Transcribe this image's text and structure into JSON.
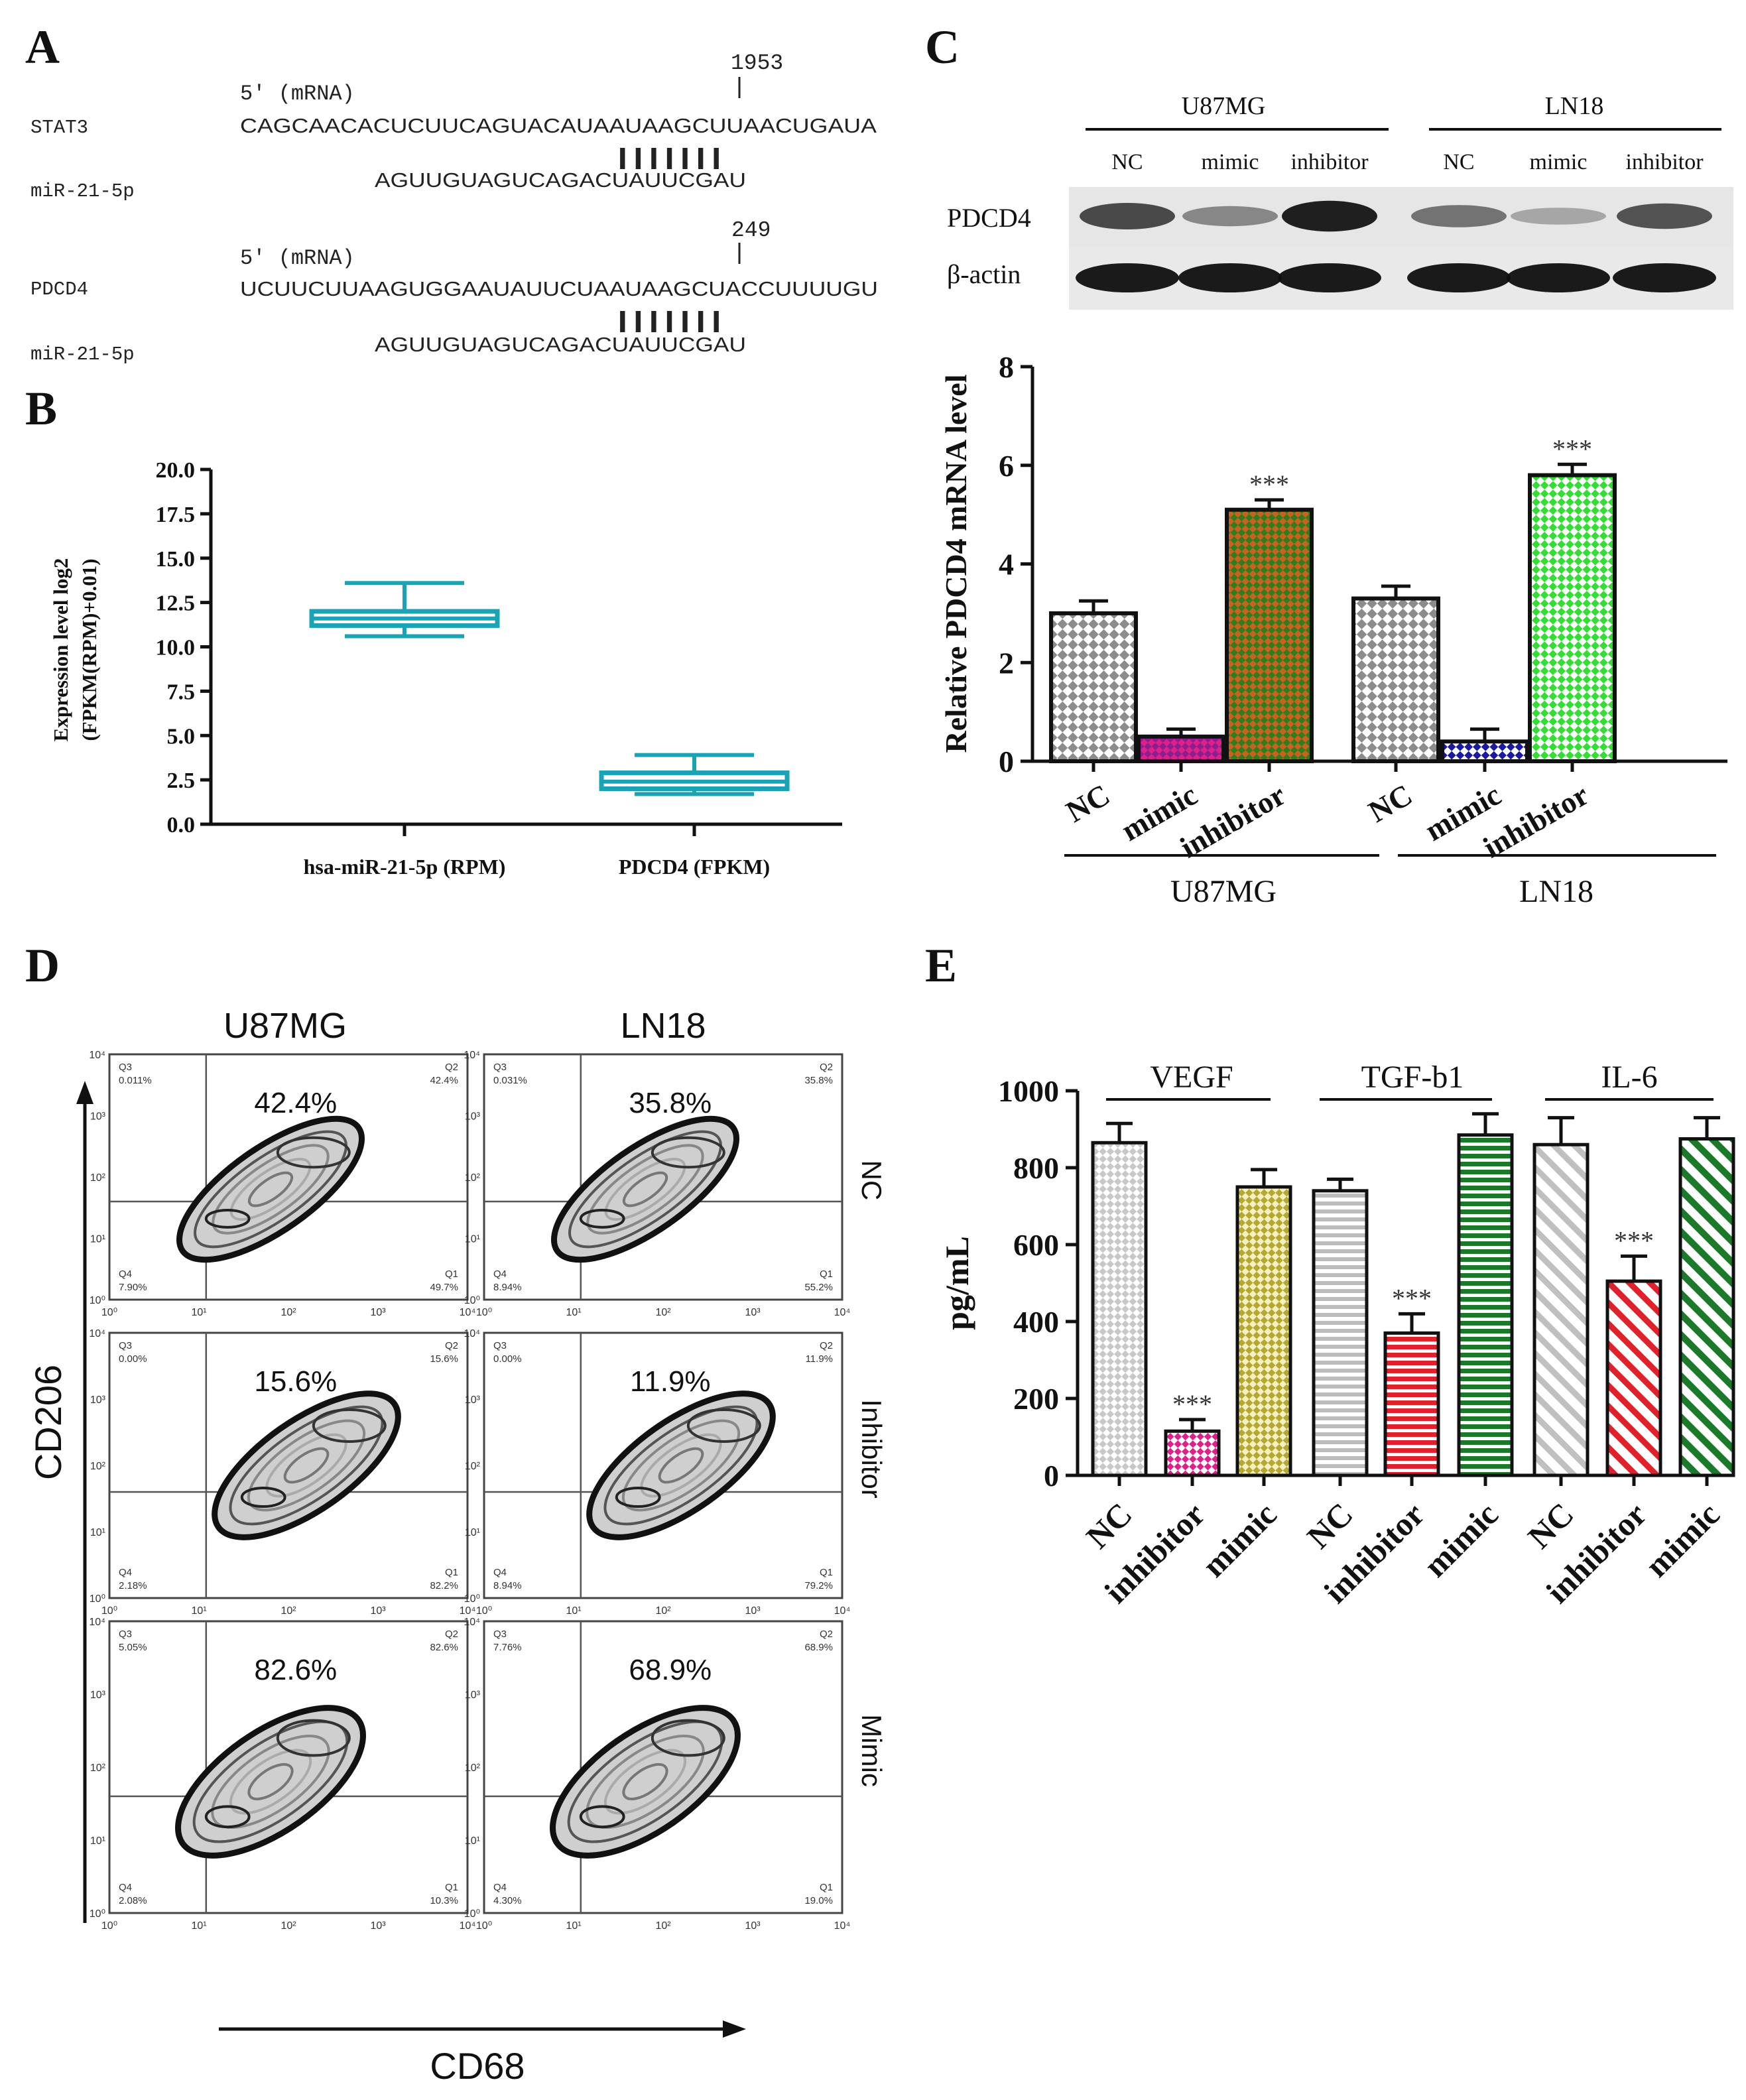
{
  "panels": {
    "A": "A",
    "B": "B",
    "C": "C",
    "D": "D",
    "E": "E"
  },
  "panelA": {
    "rows": [
      {
        "pos": "1953",
        "prime": "5' (mRNA)",
        "gene": "STAT3",
        "target": "CAGCAACACUCUUCAGUACAUAAUAAGCUUAACUGAUA",
        "bars": "|||||||",
        "mirna_label": "miR-21-5p",
        "mirna": "AGUUGUAGUCAGACUAUUCGAU"
      },
      {
        "pos": "249",
        "prime": "5' (mRNA)",
        "gene": "PDCD4",
        "target": "UCUUCUUAAGUGGAAUAUUCUAAUAAGCUACCUUUUGU",
        "bars": "|||||||",
        "mirna_label": "miR-21-5p",
        "mirna": "AGUUGUAGUCAGACUAUUCGAU"
      }
    ]
  },
  "blot": {
    "group1": "U87MG",
    "group2": "LN18",
    "lanes": [
      "NC",
      "mimic",
      "inhibitor",
      "NC",
      "mimic",
      "inhibitor"
    ],
    "rows": [
      "PDCD4",
      "β-actin"
    ],
    "pdcd4_intensity": [
      0.75,
      0.45,
      0.95,
      0.55,
      0.3,
      0.7
    ],
    "actin_intensity": [
      0.95,
      0.95,
      0.95,
      0.95,
      0.95,
      0.95
    ]
  },
  "facs": {
    "col_titles": [
      "U87MG",
      "LN18"
    ],
    "row_labels": [
      "NC",
      "Inhibitor",
      "Mimic"
    ],
    "tick_labels": [
      "10⁰",
      "10¹",
      "10²",
      "10³",
      "10⁴"
    ],
    "cells": [
      {
        "big": "42.4%",
        "q3": "Q3",
        "q3v": "0.011%",
        "q2": "Q2",
        "q2v": "42.4%",
        "q4": "Q4",
        "q4v": "7.90%",
        "q1": "Q1",
        "q1v": "49.7%"
      },
      {
        "big": "35.8%",
        "q3": "Q3",
        "q3v": "0.031%",
        "q2": "Q2",
        "q2v": "35.8%",
        "q4": "Q4",
        "q4v": "8.94%",
        "q1": "Q1",
        "q1v": "55.2%"
      },
      {
        "big": "15.6%",
        "q3": "Q3",
        "q3v": "0.00%",
        "q2": "Q2",
        "q2v": "15.6%",
        "q4": "Q4",
        "q4v": "2.18%",
        "q1": "Q1",
        "q1v": "82.2%"
      },
      {
        "big": "11.9%",
        "q3": "Q3",
        "q3v": "0.00%",
        "q2": "Q2",
        "q2v": "11.9%",
        "q4": "Q4",
        "q4v": "8.94%",
        "q1": "Q1",
        "q1v": "79.2%"
      },
      {
        "big": "82.6%",
        "q3": "Q3",
        "q3v": "5.05%",
        "q2": "Q2",
        "q2v": "82.6%",
        "q4": "Q4",
        "q4v": "2.08%",
        "q1": "Q1",
        "q1v": "10.3%"
      },
      {
        "big": "68.9%",
        "q3": "Q3",
        "q3v": "7.76%",
        "q2": "Q2",
        "q2v": "68.9%",
        "q4": "Q4",
        "q4v": "4.30%",
        "q1": "Q1",
        "q1v": "19.0%"
      }
    ],
    "ylabel": "CD206",
    "xlabel": "CD68"
  },
  "colors": {
    "teal": "#1aa3b5",
    "gray": "#8c8c8c",
    "purple": "#8b1f8e",
    "orange_hatch": "#c9621e",
    "green_hatch": "#2f7d1f",
    "lime": "#33dd33",
    "blue": "#1a1aa0",
    "red": "#e0202a",
    "pink": "#e0208a",
    "olive": "#b5a832",
    "dkgreen": "#1a7a2a",
    "lightgray": "#cfcfcf"
  },
  "chart_data": [
    {
      "id": "B",
      "type": "boxplot",
      "ylabel": "Expression level log2 (FPKM(RPM)+0.01)",
      "ylabel_line1": "Expression level log2",
      "ylabel_line2": "(FPKM(RPM)+0.01)",
      "ylim": [
        0,
        20
      ],
      "yticks": [
        "0.0",
        "2.5",
        "5.0",
        "7.5",
        "10.0",
        "12.5",
        "15.0",
        "17.5",
        "20.0"
      ],
      "categories": [
        "hsa-miR-21-5p (RPM)",
        "PDCD4 (FPKM)"
      ],
      "boxes": [
        {
          "min": 10.6,
          "q1": 11.2,
          "median": 11.6,
          "q3": 12.0,
          "max": 13.6
        },
        {
          "min": 1.7,
          "q1": 2.0,
          "median": 2.4,
          "q3": 2.9,
          "max": 3.9
        }
      ]
    },
    {
      "id": "C",
      "type": "bar",
      "ylabel": "Relative PDCD4 mRNA level",
      "ylim": [
        0,
        8
      ],
      "yticks": [
        "0",
        "2",
        "4",
        "6",
        "8"
      ],
      "categories": [
        "NC",
        "mimic",
        "inhibitor",
        "NC",
        "mimic",
        "inhibitor"
      ],
      "groups": [
        "U87MG",
        "LN18"
      ],
      "values": [
        3.0,
        0.5,
        5.1,
        3.3,
        0.4,
        5.8
      ],
      "errors": [
        0.25,
        0.15,
        0.2,
        0.25,
        0.25,
        0.22
      ],
      "stars": [
        "",
        "",
        "***",
        "",
        "",
        "***"
      ]
    },
    {
      "id": "E",
      "type": "bar",
      "ylabel": "pg/mL",
      "ylim": [
        0,
        1000
      ],
      "yticks": [
        "0",
        "200",
        "400",
        "600",
        "800",
        "1000"
      ],
      "categories": [
        "NC",
        "inhibitor",
        "mimic",
        "NC",
        "inhibitor",
        "mimic",
        "NC",
        "inhibitor",
        "mimic"
      ],
      "groups": [
        "VEGF",
        "TGF-b1",
        "IL-6"
      ],
      "values": [
        865,
        115,
        750,
        740,
        370,
        885,
        860,
        505,
        875
      ],
      "errors": [
        50,
        30,
        45,
        30,
        50,
        55,
        70,
        65,
        55
      ],
      "stars": [
        "",
        "***",
        "",
        "",
        "***",
        "",
        "",
        "***",
        ""
      ]
    }
  ]
}
